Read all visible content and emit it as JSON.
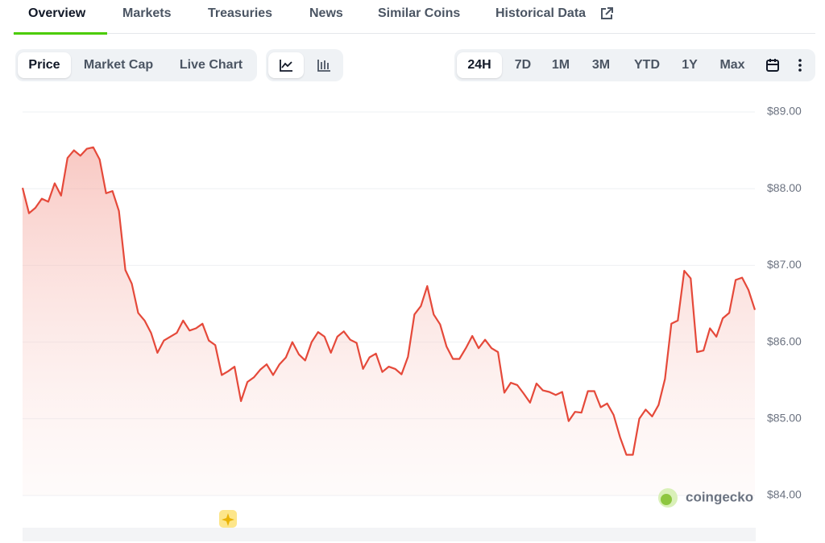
{
  "tabs": [
    "Overview",
    "Markets",
    "Treasuries",
    "News",
    "Similar Coins",
    "Historical Data"
  ],
  "chart_views": [
    "Price",
    "Market Cap",
    "Live Chart"
  ],
  "time_ranges": [
    "24H",
    "7D",
    "1M",
    "3M",
    "YTD",
    "1Y",
    "Max"
  ],
  "chart_data": {
    "type": "line",
    "color": "#e5493a",
    "watermark": "coingecko",
    "values": [
      88.01,
      87.68,
      87.75,
      87.87,
      87.83,
      88.07,
      87.91,
      88.4,
      88.5,
      88.43,
      88.52,
      88.54,
      88.38,
      87.94,
      87.97,
      87.71,
      86.94,
      86.76,
      86.38,
      86.28,
      86.12,
      85.86,
      86.02,
      86.07,
      86.12,
      86.28,
      86.15,
      86.18,
      86.24,
      86.02,
      85.96,
      85.57,
      85.62,
      85.68,
      85.23,
      85.48,
      85.54,
      85.64,
      85.71,
      85.57,
      85.71,
      85.8,
      86.0,
      85.84,
      85.76,
      86.0,
      86.13,
      86.07,
      85.86,
      86.07,
      86.14,
      86.03,
      85.99,
      85.65,
      85.8,
      85.85,
      85.61,
      85.68,
      85.65,
      85.58,
      85.81,
      86.36,
      86.47,
      86.73,
      86.36,
      86.23,
      85.94,
      85.78,
      85.78,
      85.92,
      86.08,
      85.92,
      86.03,
      85.92,
      85.87,
      85.34,
      85.47,
      85.44,
      85.33,
      85.21,
      85.46,
      85.37,
      85.35,
      85.31,
      85.35,
      84.97,
      85.09,
      85.08,
      85.36,
      85.36,
      85.15,
      85.2,
      85.05,
      84.76,
      84.53,
      84.53,
      85.0,
      85.12,
      85.03,
      85.18,
      85.52,
      86.24,
      86.28,
      86.93,
      86.83,
      85.87,
      85.89,
      86.18,
      86.07,
      86.31,
      86.38,
      86.81,
      86.84,
      86.68,
      86.42
    ],
    "ylim": [
      84,
      89
    ],
    "yticks": [
      {
        "value": 84,
        "label": "$84.00"
      },
      {
        "value": 85,
        "label": "$85.00"
      },
      {
        "value": 86,
        "label": "$86.00"
      },
      {
        "value": 87,
        "label": "$87.00"
      },
      {
        "value": 88,
        "label": "$88.00"
      },
      {
        "value": 89,
        "label": "$89.00"
      }
    ],
    "grid": true
  }
}
